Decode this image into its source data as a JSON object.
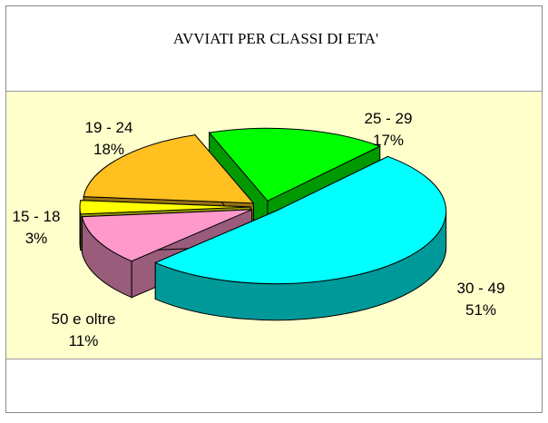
{
  "chart_data": {
    "type": "pie3d",
    "title": "AVVIATI PER CLASSI DI ETA'",
    "categories": [
      "25 - 29",
      "30 - 49",
      "50 e oltre",
      "15 - 18",
      "19 - 24"
    ],
    "values": [
      17,
      51,
      11,
      3,
      18
    ],
    "value_labels": [
      "17%",
      "51%",
      "11%",
      "3%",
      "18%"
    ],
    "colors": [
      "#00ff00",
      "#00ffff",
      "#ff99cc",
      "#ffff00",
      "#ffc020"
    ]
  }
}
